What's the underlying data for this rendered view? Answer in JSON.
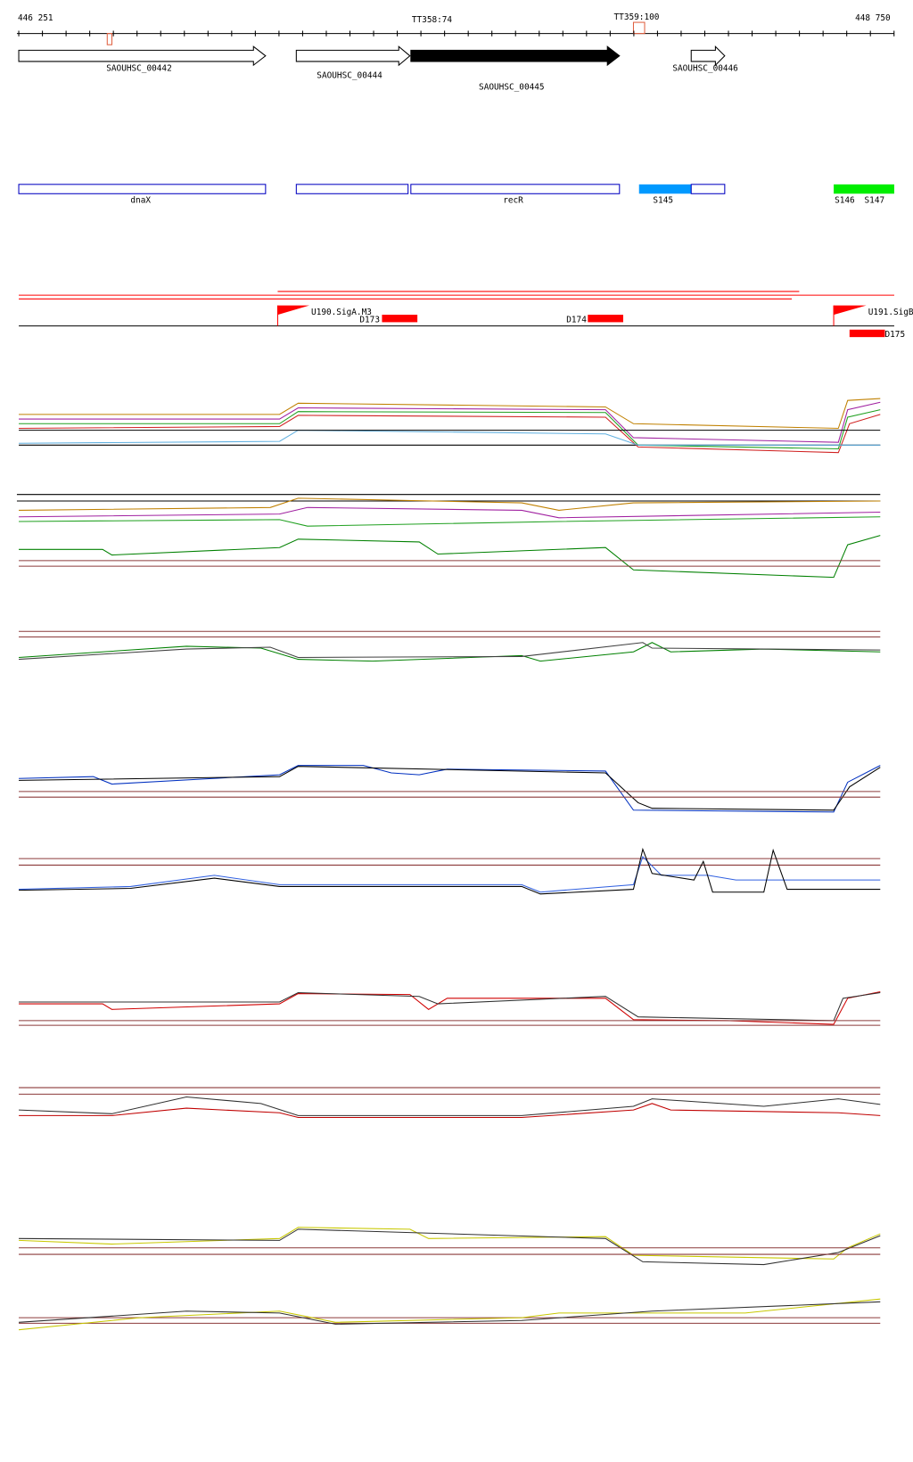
{
  "ruler": {
    "start": "446 251",
    "end": "448 750",
    "markers": [
      "TT358:74",
      "TT359:100"
    ]
  },
  "genes": [
    "SAOUHSC_00442",
    "SAOUHSC_00444",
    "SAOUHSC_00445",
    "SAOUHSC_00446"
  ],
  "features": [
    "dnaX",
    "recR",
    "S145",
    "S146",
    "S147"
  ],
  "regulators": [
    "U190.SigA.M3",
    "D173",
    "D174",
    "U191.SigB",
    "D175"
  ]
}
